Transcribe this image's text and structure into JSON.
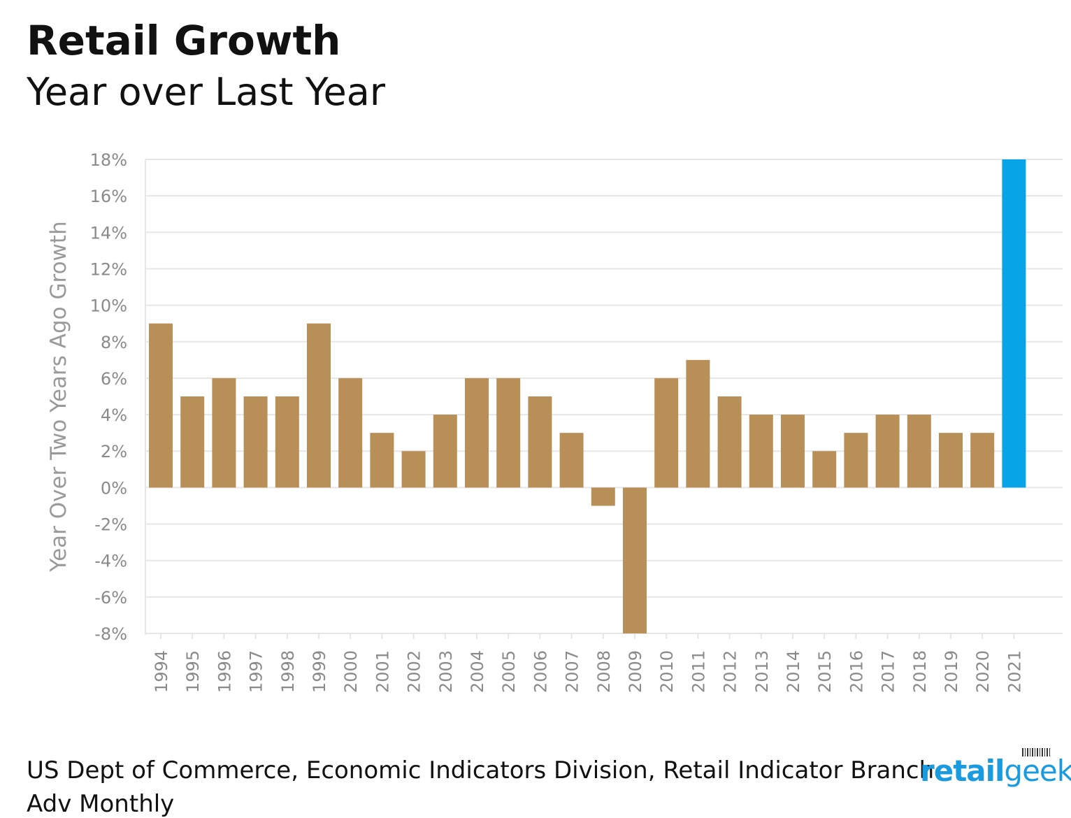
{
  "title": "Retail Growth",
  "subtitle": "Year over Last Year",
  "source": "US Dept of Commerce, Economic Indicators Division, Retail Indicator Branch",
  "source_line2": "Adv Monthly",
  "logo": {
    "part1": "retail",
    "part2": "geek"
  },
  "colors": {
    "bar": "#b98f58",
    "highlight": "#08a4e8",
    "grid": "#e6e6e6",
    "tick_text": "#8a8a8a",
    "axis_label": "#9a9a9a"
  },
  "chart_data": {
    "type": "bar",
    "title": "Retail Growth",
    "subtitle": "Year over Last Year",
    "xlabel": "",
    "ylabel": "Year Over Two Years Ago Growth",
    "ylim": [
      -8,
      18
    ],
    "yticks": [
      18,
      16,
      14,
      12,
      10,
      8,
      6,
      4,
      2,
      0,
      -2,
      -4,
      -6,
      -8
    ],
    "ytick_labels": [
      "18%",
      "16%",
      "14%",
      "12%",
      "10%",
      "8%",
      "6%",
      "4%",
      "2%",
      "0%",
      "-2%",
      "-4%",
      "-6%",
      "-8%"
    ],
    "grid": true,
    "categories": [
      "1994",
      "1995",
      "1996",
      "1997",
      "1998",
      "1999",
      "2000",
      "2001",
      "2002",
      "2003",
      "2004",
      "2005",
      "2006",
      "2007",
      "2008",
      "2009",
      "2010",
      "2011",
      "2012",
      "2013",
      "2014",
      "2015",
      "2016",
      "2017",
      "2018",
      "2019",
      "2020",
      "2021"
    ],
    "values": [
      9,
      5,
      6,
      5,
      5,
      9,
      6,
      3,
      2,
      4,
      6,
      6,
      5,
      3,
      -1,
      -8,
      6,
      7,
      5,
      4,
      4,
      2,
      3,
      4,
      4,
      3,
      3,
      18
    ],
    "highlight_category": "2021"
  }
}
